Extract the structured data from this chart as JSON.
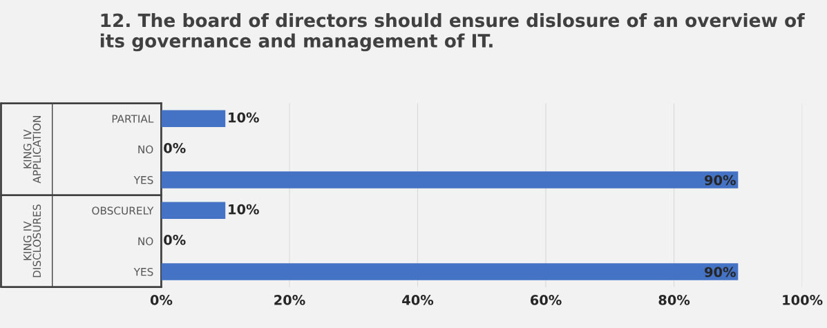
{
  "chart_data": {
    "type": "bar",
    "orientation": "horizontal",
    "title": "12. The board of directors should ensure dislosure of an overview of its governance and management of IT.",
    "categories": [
      "PARTIAL",
      "NO",
      "YES",
      "OBSCURELY",
      "NO",
      "YES"
    ],
    "values": [
      10,
      0,
      90,
      10,
      0,
      90
    ],
    "value_labels": [
      "10%",
      "0%",
      "90%",
      "10%",
      "0%",
      "90%"
    ],
    "color": "#4472c4",
    "xlim": [
      0,
      100
    ],
    "xticks": [
      {
        "value": 0,
        "label": "0%"
      },
      {
        "value": 20,
        "label": "20%"
      },
      {
        "value": 40,
        "label": "40%"
      },
      {
        "value": 60,
        "label": "60%"
      },
      {
        "value": 80,
        "label": "80%"
      },
      {
        "value": 100,
        "label": "100%"
      }
    ],
    "annotations": [
      "KING IV\nAPPLICATION",
      "KING IV\nDISCLOSURES"
    ],
    "grid": "x"
  }
}
